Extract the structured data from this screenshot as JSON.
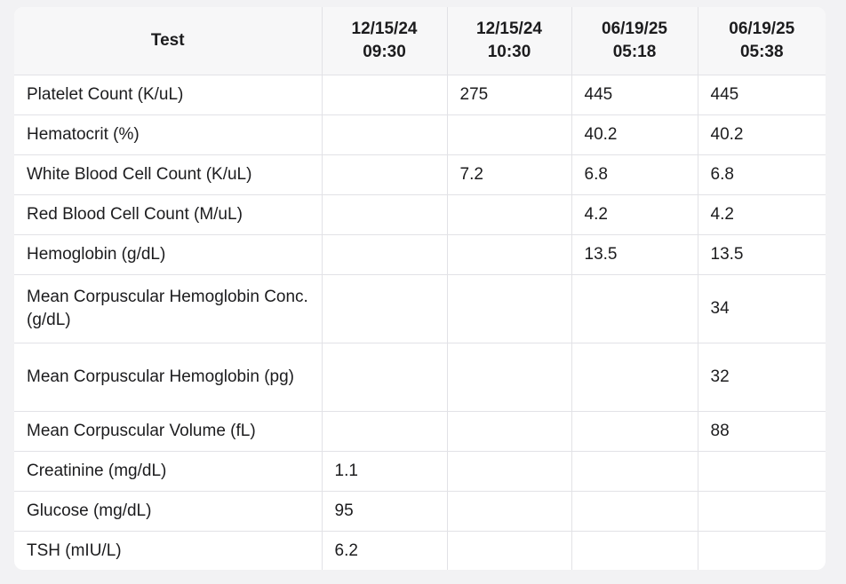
{
  "table": {
    "header": {
      "test": "Test",
      "dates": [
        {
          "date": "12/15/24",
          "time": "09:30"
        },
        {
          "date": "12/15/24",
          "time": "10:30"
        },
        {
          "date": "06/19/25",
          "time": "05:18"
        },
        {
          "date": "06/19/25",
          "time": "05:38"
        }
      ]
    },
    "rows": [
      {
        "test": "Platelet Count (K/uL)",
        "values": [
          "",
          "275",
          "445",
          "445"
        ]
      },
      {
        "test": "Hematocrit (%)",
        "values": [
          "",
          "",
          "40.2",
          "40.2"
        ]
      },
      {
        "test": "White Blood Cell Count (K/uL)",
        "values": [
          "",
          "7.2",
          "6.8",
          "6.8"
        ]
      },
      {
        "test": "Red Blood Cell Count (M/uL)",
        "values": [
          "",
          "",
          "4.2",
          "4.2"
        ]
      },
      {
        "test": "Hemoglobin (g/dL)",
        "values": [
          "",
          "",
          "13.5",
          "13.5"
        ]
      },
      {
        "test": "Mean Corpuscular Hemoglobin Conc. (g/dL)",
        "values": [
          "",
          "",
          "",
          "34"
        ]
      },
      {
        "test": "Mean Corpuscular Hemoglobin (pg)",
        "values": [
          "",
          "",
          "",
          "32"
        ]
      },
      {
        "test": "Mean Corpuscular Volume (fL)",
        "values": [
          "",
          "",
          "",
          "88"
        ]
      },
      {
        "test": "Creatinine (mg/dL)",
        "values": [
          "1.1",
          "",
          "",
          ""
        ]
      },
      {
        "test": "Glucose (mg/dL)",
        "values": [
          "95",
          "",
          "",
          ""
        ]
      },
      {
        "test": "TSH (mIU/L)",
        "values": [
          "6.2",
          "",
          "",
          ""
        ]
      }
    ]
  }
}
